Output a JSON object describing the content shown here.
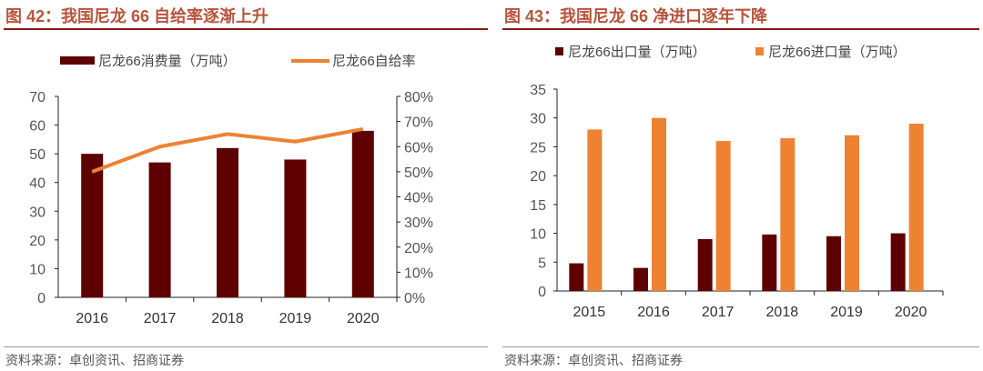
{
  "colors": {
    "dark": "#5e0000",
    "orange": "#ee8232",
    "title": "#b8543c"
  },
  "chart_data": [
    {
      "type": "bar+line",
      "title": "图 42：我国尼龙 66 自给率逐渐上升",
      "source": "资料来源：卓创资讯、招商证券",
      "categories": [
        "2016",
        "2017",
        "2018",
        "2019",
        "2020"
      ],
      "series": [
        {
          "name": "尼龙66消费量（万吨）",
          "type": "bar",
          "axis": "left",
          "color": "#5e0000",
          "values": [
            50,
            47,
            52,
            48,
            58
          ]
        },
        {
          "name": "尼龙66自给率",
          "type": "line",
          "axis": "right",
          "color": "#ee8232",
          "values": [
            50,
            60,
            65,
            62,
            67
          ]
        }
      ],
      "ylim": [
        0,
        70
      ],
      "yticks": [
        "0",
        "10",
        "20",
        "30",
        "40",
        "50",
        "60",
        "70"
      ],
      "y2lim": [
        0,
        80
      ],
      "y2ticks": [
        "0%",
        "10%",
        "20%",
        "30%",
        "40%",
        "50%",
        "60%",
        "70%",
        "80%"
      ],
      "legend": "top",
      "grid": false
    },
    {
      "type": "bar",
      "title": "图 43：我国尼龙 66 净进口逐年下降",
      "source": "资料来源：卓创资讯、招商证券",
      "categories": [
        "2015",
        "2016",
        "2017",
        "2018",
        "2019",
        "2020"
      ],
      "series": [
        {
          "name": "尼龙66出口量（万吨）",
          "color": "#5e0000",
          "values": [
            4.8,
            4,
            9,
            9.8,
            9.5,
            10
          ]
        },
        {
          "name": "尼龙66进口量（万吨）",
          "color": "#ee8232",
          "values": [
            28,
            30,
            26,
            26.5,
            27,
            29
          ]
        }
      ],
      "ylim": [
        0,
        35
      ],
      "yticks": [
        "0",
        "5",
        "10",
        "15",
        "20",
        "25",
        "30",
        "35"
      ],
      "legend": "top",
      "grid": false
    }
  ]
}
